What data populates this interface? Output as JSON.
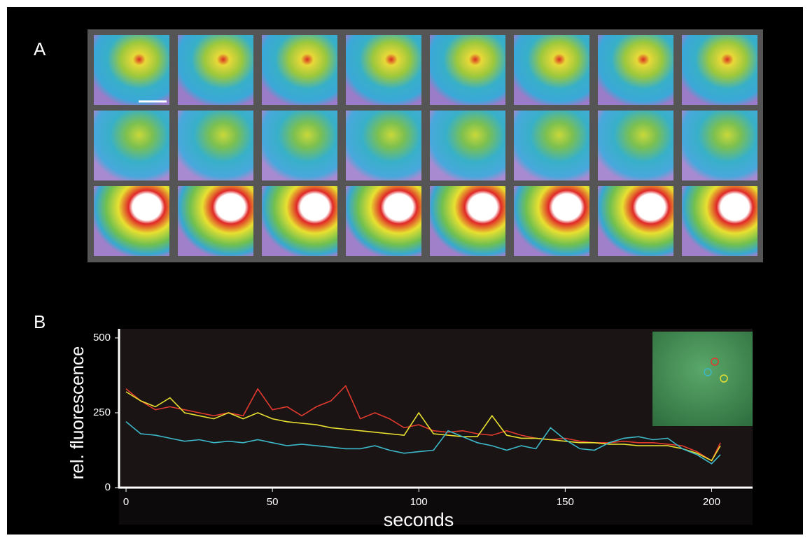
{
  "panels": [
    "A",
    "B"
  ],
  "chart_data": {
    "type": "line",
    "x_label": "seconds",
    "y_label": "rel. fluorescence",
    "x": [
      0,
      5,
      10,
      15,
      20,
      25,
      30,
      35,
      40,
      45,
      50,
      55,
      60,
      65,
      70,
      75,
      80,
      85,
      90,
      95,
      100,
      105,
      110,
      115,
      120,
      125,
      130,
      135,
      140,
      145,
      150,
      155,
      160,
      165,
      170,
      175,
      180,
      185,
      190,
      195,
      200,
      203
    ],
    "series": [
      {
        "color": "#e03a2e",
        "values": [
          330,
          290,
          260,
          270,
          260,
          250,
          240,
          250,
          240,
          330,
          260,
          270,
          240,
          270,
          290,
          340,
          230,
          250,
          230,
          200,
          210,
          190,
          185,
          190,
          180,
          175,
          190,
          175,
          165,
          160,
          165,
          155,
          150,
          150,
          155,
          150,
          150,
          145,
          140,
          120,
          90,
          150
        ]
      },
      {
        "color": "#e8e030",
        "values": [
          320,
          290,
          270,
          300,
          250,
          240,
          230,
          250,
          230,
          250,
          230,
          220,
          215,
          210,
          200,
          195,
          190,
          185,
          180,
          175,
          250,
          180,
          175,
          170,
          170,
          240,
          175,
          165,
          165,
          160,
          155,
          150,
          150,
          145,
          145,
          140,
          140,
          140,
          130,
          115,
          90,
          140
        ]
      },
      {
        "color": "#3cb8c8",
        "values": [
          220,
          180,
          175,
          165,
          155,
          160,
          150,
          155,
          150,
          160,
          150,
          140,
          145,
          140,
          135,
          130,
          130,
          140,
          125,
          115,
          120,
          125,
          190,
          170,
          150,
          140,
          125,
          140,
          130,
          200,
          160,
          130,
          125,
          150,
          165,
          170,
          160,
          165,
          130,
          110,
          80,
          110
        ]
      }
    ],
    "xlim": [
      -2.4,
      214
    ],
    "ylim": [
      0,
      500
    ],
    "xticks": [
      0,
      50,
      100,
      150,
      200
    ],
    "yticks": [
      0,
      250,
      500
    ]
  }
}
